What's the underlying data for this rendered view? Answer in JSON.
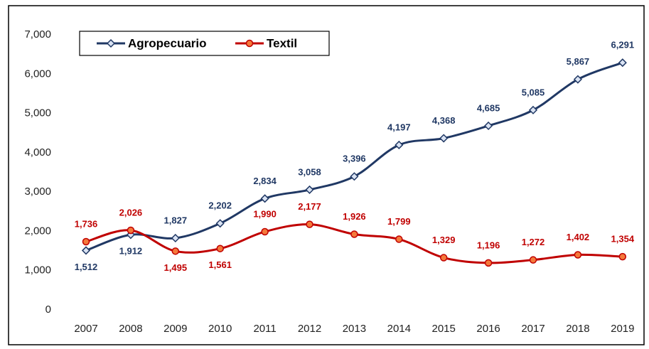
{
  "chart_data": {
    "type": "line",
    "categories": [
      "2007",
      "2008",
      "2009",
      "2010",
      "2011",
      "2012",
      "2013",
      "2014",
      "2015",
      "2016",
      "2017",
      "2018",
      "2019"
    ],
    "series": [
      {
        "name": "Agropecuario",
        "color": "#203864",
        "marker_fill": "#dae3f3",
        "values": [
          1512,
          1912,
          1827,
          2202,
          2834,
          3058,
          3396,
          4197,
          4368,
          4685,
          5085,
          5867,
          6291
        ],
        "value_labels": [
          "1,512",
          "1,912",
          "1,827",
          "2,202",
          "2,834",
          "3,058",
          "3,396",
          "4,197",
          "4,368",
          "4,685",
          "5,085",
          "5,867",
          "6,291"
        ]
      },
      {
        "name": "Textil",
        "color": "#c00000",
        "marker_fill": "#f4793b",
        "values": [
          1736,
          2026,
          1495,
          1561,
          1990,
          2177,
          1926,
          1799,
          1329,
          1196,
          1272,
          1402,
          1354
        ],
        "value_labels": [
          "1,736",
          "2,026",
          "1,495",
          "1,561",
          "1,990",
          "2,177",
          "1,926",
          "1,799",
          "1,329",
          "1,196",
          "1,272",
          "1,402",
          "1,354"
        ]
      }
    ],
    "ylim": [
      0,
      7000
    ],
    "yticks": [
      0,
      {
        "value": 1000,
        "label": "1,000"
      },
      {
        "value": 2000,
        "label": "2,000"
      },
      {
        "value": 3000,
        "label": "3,000"
      },
      {
        "value": 4000,
        "label": "4,000"
      },
      {
        "value": 5000,
        "label": "5,000"
      },
      {
        "value": 6000,
        "label": "6,000"
      },
      {
        "value": 7000,
        "label": "7,000"
      }
    ],
    "grid": false,
    "legend": "top-left"
  }
}
